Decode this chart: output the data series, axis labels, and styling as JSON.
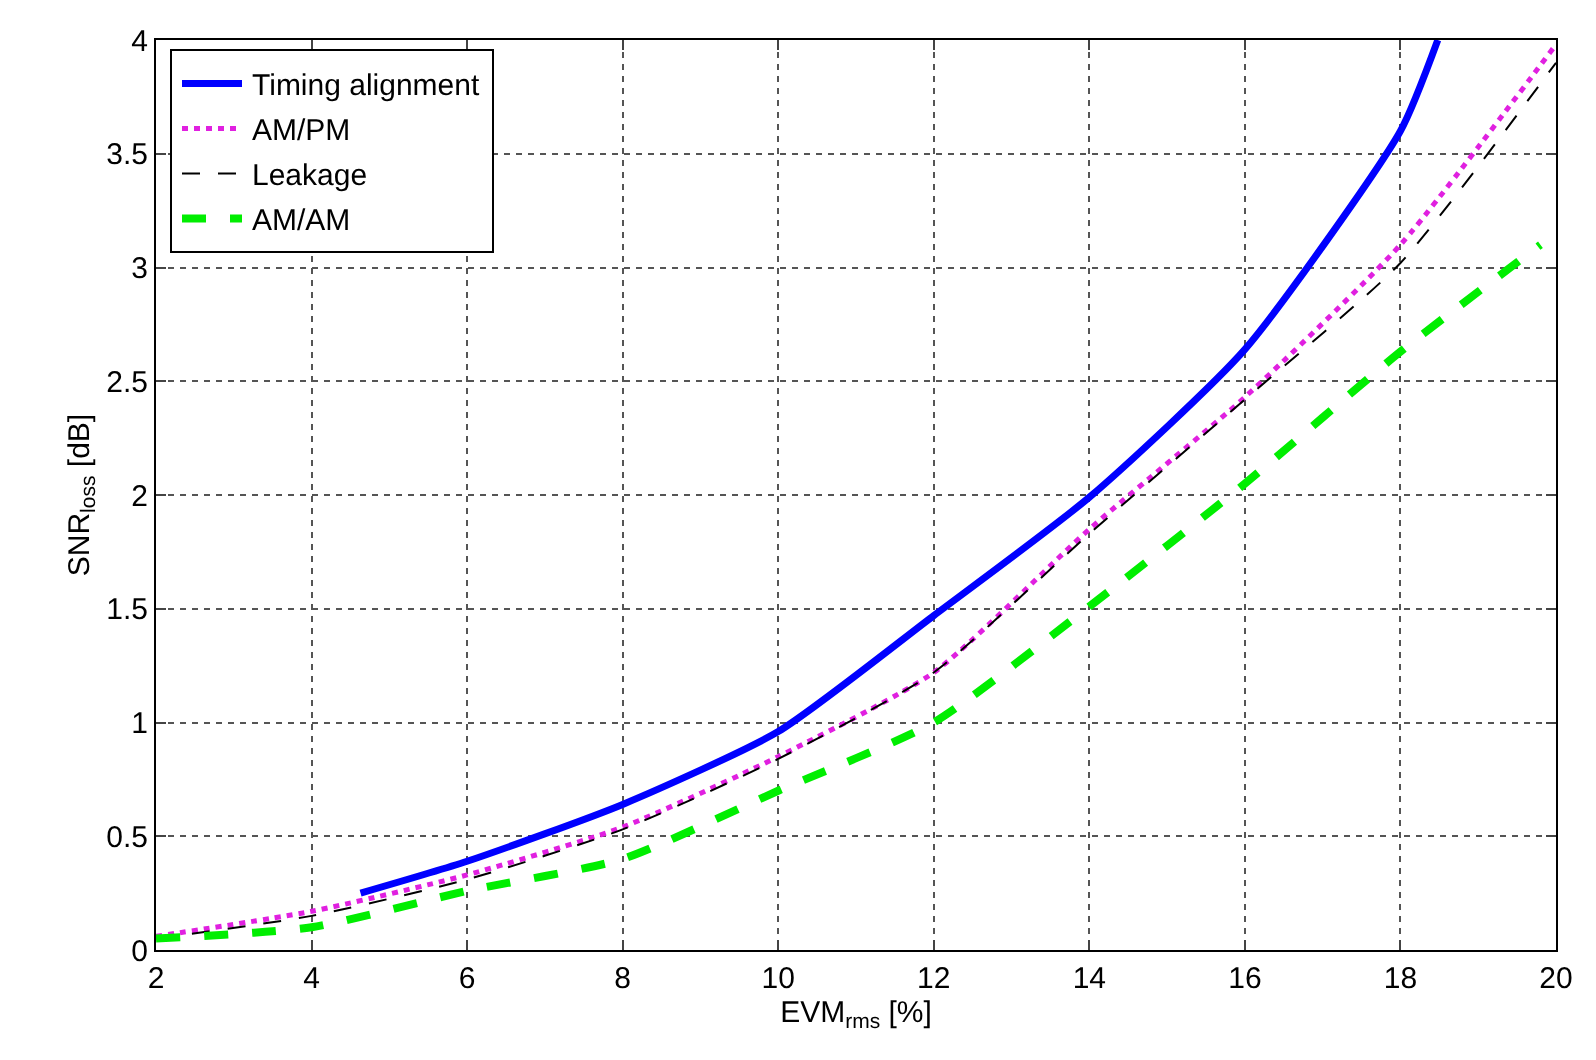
{
  "chart_data": {
    "type": "line",
    "xlabel": "EVM$_{rms}$ [%]",
    "ylabel": "SNR$_{loss}$ [dB]",
    "xlim": [
      2,
      20
    ],
    "ylim": [
      0,
      4
    ],
    "xticks": [
      2,
      4,
      6,
      8,
      10,
      12,
      14,
      16,
      18,
      20
    ],
    "yticks": [
      0,
      0.5,
      1,
      1.5,
      2,
      2.5,
      3,
      3.5,
      4
    ],
    "grid": true,
    "legend": "top left",
    "series": [
      {
        "name": "Timing alignment",
        "color": "#0000ff",
        "line_style": "solid",
        "x": [
          4.63,
          6,
          8,
          10,
          12,
          14,
          16,
          18,
          18.48
        ],
        "values": [
          0.25,
          0.39,
          0.64,
          0.96,
          1.47,
          1.99,
          2.64,
          3.6,
          4.0
        ]
      },
      {
        "name": "AM/PM",
        "color": "#e020e0",
        "line_style": "dotted",
        "x": [
          2,
          4,
          6,
          8,
          10,
          12,
          14,
          16,
          18,
          20
        ],
        "values": [
          0.06,
          0.17,
          0.33,
          0.54,
          0.85,
          1.22,
          1.85,
          2.43,
          3.1,
          3.98
        ]
      },
      {
        "name": "Leakage",
        "color": "#000000",
        "line_style": "dashed",
        "x": [
          2,
          4,
          6,
          8,
          10,
          12,
          14,
          16,
          18,
          20
        ],
        "values": [
          0.05,
          0.15,
          0.31,
          0.53,
          0.84,
          1.22,
          1.83,
          2.42,
          3.02,
          3.9
        ]
      },
      {
        "name": "AM/AM",
        "color": "#00ee00",
        "line_style": "dashed",
        "x": [
          2,
          4,
          6,
          8,
          10,
          12,
          14,
          16,
          18,
          19.8
        ],
        "values": [
          0.05,
          0.1,
          0.26,
          0.4,
          0.7,
          1.0,
          1.51,
          2.05,
          2.63,
          3.1
        ]
      }
    ]
  }
}
